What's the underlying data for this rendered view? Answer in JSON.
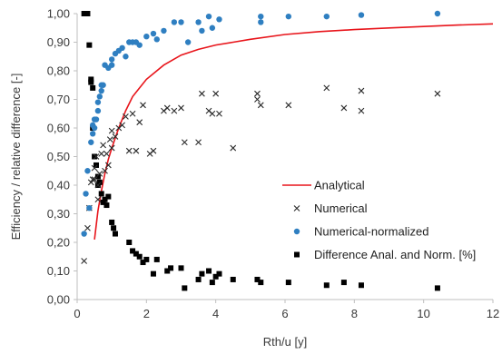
{
  "chart_data": {
    "type": "scatter",
    "xlabel": "Rth/u [y]",
    "ylabel": "Efficiency  / relative difference [-]",
    "xlim": [
      0,
      12
    ],
    "ylim": [
      0,
      1.0
    ],
    "x_ticks": [
      "0",
      "2",
      "4",
      "6",
      "8",
      "10",
      "12"
    ],
    "y_ticks": [
      "0,00",
      "0,10",
      "0,20",
      "0,30",
      "0,40",
      "0,50",
      "0,60",
      "0,70",
      "0,80",
      "0,90",
      "1,00"
    ],
    "grid": false,
    "legend_position": "bottom-right",
    "colors": {
      "analytical": "#e8151b",
      "numerical": "#2b2b2b",
      "normalized": "#2f7fc1",
      "difference": "#000000"
    },
    "series": [
      {
        "name": "Analytical",
        "type": "line",
        "x": [
          0.5,
          0.6,
          0.7,
          0.8,
          0.9,
          1.0,
          1.2,
          1.4,
          1.6,
          1.8,
          2.0,
          2.5,
          3.0,
          3.5,
          4.0,
          4.5,
          5.0,
          6.0,
          7.0,
          8.0,
          9.0,
          10.0,
          11.0,
          12.0
        ],
        "y": [
          0.21,
          0.31,
          0.38,
          0.44,
          0.49,
          0.53,
          0.6,
          0.66,
          0.71,
          0.74,
          0.77,
          0.82,
          0.855,
          0.875,
          0.89,
          0.9,
          0.91,
          0.927,
          0.937,
          0.944,
          0.95,
          0.955,
          0.96,
          0.964
        ]
      },
      {
        "name": "Numerical",
        "type": "scatter",
        "x": [
          0.2,
          0.3,
          0.35,
          0.4,
          0.45,
          0.5,
          0.5,
          0.55,
          0.6,
          0.6,
          0.65,
          0.7,
          0.75,
          0.8,
          0.85,
          0.9,
          0.95,
          1.0,
          1.0,
          1.1,
          1.2,
          1.3,
          1.4,
          1.5,
          1.6,
          1.7,
          1.8,
          1.9,
          2.1,
          2.2,
          2.5,
          2.6,
          2.8,
          3.0,
          3.1,
          3.5,
          3.6,
          3.8,
          3.9,
          4.0,
          4.1,
          4.5,
          5.2,
          5.2,
          5.3,
          6.1,
          7.2,
          7.7,
          8.2,
          8.2,
          10.4
        ],
        "y": [
          0.135,
          0.25,
          0.32,
          0.41,
          0.42,
          0.42,
          0.46,
          0.5,
          0.4,
          0.35,
          0.44,
          0.51,
          0.54,
          0.45,
          0.51,
          0.47,
          0.56,
          0.53,
          0.59,
          0.57,
          0.6,
          0.61,
          0.64,
          0.52,
          0.65,
          0.52,
          0.62,
          0.68,
          0.51,
          0.52,
          0.66,
          0.67,
          0.66,
          0.67,
          0.55,
          0.55,
          0.72,
          0.66,
          0.65,
          0.72,
          0.65,
          0.53,
          0.72,
          0.7,
          0.68,
          0.68,
          0.74,
          0.67,
          0.73,
          0.66,
          0.72
        ]
      },
      {
        "name": "Numerical-normalized",
        "type": "scatter",
        "x": [
          0.2,
          0.25,
          0.3,
          0.35,
          0.4,
          0.45,
          0.45,
          0.5,
          0.5,
          0.55,
          0.6,
          0.6,
          0.65,
          0.7,
          0.7,
          0.75,
          0.8,
          0.9,
          1.0,
          1.0,
          1.1,
          1.2,
          1.3,
          1.4,
          1.5,
          1.6,
          1.7,
          1.8,
          2.0,
          2.2,
          2.3,
          2.5,
          2.8,
          3.0,
          3.2,
          3.5,
          3.6,
          3.8,
          3.9,
          4.1,
          5.3,
          5.3,
          6.1,
          7.2,
          8.2,
          10.4
        ],
        "y": [
          0.23,
          0.37,
          0.45,
          0.32,
          0.55,
          0.58,
          0.61,
          0.6,
          0.63,
          0.63,
          0.66,
          0.69,
          0.71,
          0.73,
          0.75,
          0.75,
          0.82,
          0.81,
          0.82,
          0.84,
          0.86,
          0.87,
          0.88,
          0.85,
          0.9,
          0.9,
          0.9,
          0.89,
          0.92,
          0.93,
          0.91,
          0.94,
          0.97,
          0.97,
          0.9,
          0.97,
          0.94,
          0.99,
          0.95,
          0.98,
          0.97,
          0.99,
          0.99,
          0.99,
          0.995,
          1.0
        ]
      },
      {
        "name": "Difference Anal. and Norm. [%]",
        "type": "scatter",
        "x": [
          0.2,
          0.3,
          0.35,
          0.4,
          0.4,
          0.45,
          0.45,
          0.5,
          0.55,
          0.6,
          0.6,
          0.65,
          0.7,
          0.75,
          0.8,
          0.85,
          0.9,
          1.0,
          1.05,
          1.1,
          1.5,
          1.6,
          1.7,
          1.8,
          1.9,
          2.0,
          2.2,
          2.3,
          2.6,
          2.7,
          3.0,
          3.1,
          3.5,
          3.6,
          3.8,
          3.9,
          4.0,
          4.1,
          4.5,
          5.2,
          5.3,
          6.1,
          7.2,
          7.7,
          8.2,
          10.4
        ],
        "y": [
          1.0,
          1.0,
          0.89,
          0.77,
          0.76,
          0.74,
          0.6,
          0.5,
          0.47,
          0.43,
          0.4,
          0.41,
          0.37,
          0.34,
          0.35,
          0.33,
          0.36,
          0.27,
          0.25,
          0.23,
          0.2,
          0.17,
          0.16,
          0.15,
          0.13,
          0.14,
          0.09,
          0.14,
          0.1,
          0.11,
          0.11,
          0.04,
          0.07,
          0.09,
          0.1,
          0.06,
          0.08,
          0.09,
          0.07,
          0.07,
          0.06,
          0.06,
          0.05,
          0.06,
          0.05,
          0.04
        ]
      }
    ]
  }
}
